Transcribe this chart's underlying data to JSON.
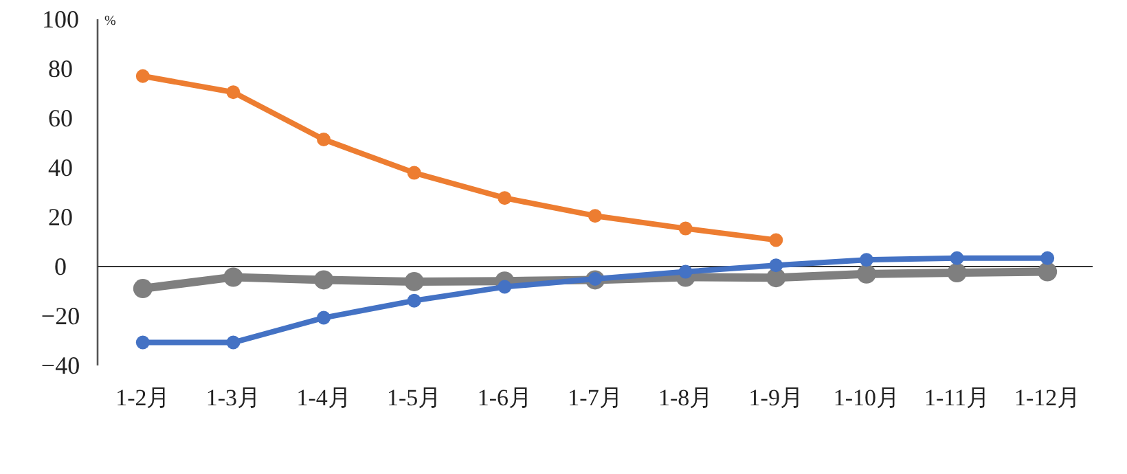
{
  "chart_data": {
    "type": "line",
    "ylabel": "%",
    "categories": [
      "1-2月",
      "1-3月",
      "1-4月",
      "1-5月",
      "1-6月",
      "1-7月",
      "1-8月",
      "1-9月",
      "1-10月",
      "1-11月",
      "1-12月"
    ],
    "series": [
      {
        "color": "#ed7d31",
        "values": [
          77,
          70.5,
          51.4,
          37.9,
          27.7,
          20.5,
          15.4,
          10.7,
          null,
          null,
          null
        ]
      },
      {
        "color": "#7f7f7f",
        "values": [
          -8.9,
          -4.3,
          -5.4,
          -6.1,
          -5.9,
          -5.4,
          -4.3,
          -4.5,
          -3,
          -2.5,
          -2.1
        ]
      },
      {
        "color": "#4472c4",
        "values": [
          -30.7,
          -30.7,
          -20.7,
          -13.8,
          -8.2,
          -5,
          -2.1,
          0.5,
          2.7,
          3.4,
          3.4
        ]
      }
    ],
    "ylim": [
      -40,
      100
    ],
    "yticks": [
      -40,
      -20,
      0,
      20,
      40,
      60,
      80,
      100
    ],
    "ref_lines": [
      {
        "axis": "y",
        "value": 0,
        "color": "#333333"
      }
    ],
    "marker": "circle",
    "line_style": "solid"
  }
}
